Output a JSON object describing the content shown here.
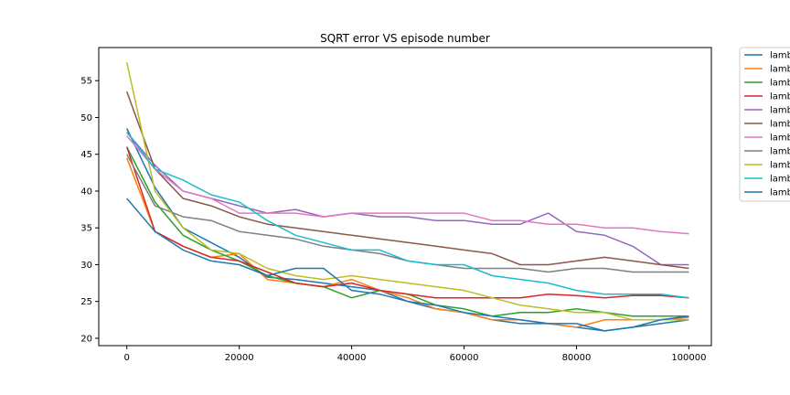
{
  "chart_data": {
    "type": "line",
    "title": "SQRT error VS episode number",
    "xlabel": "",
    "ylabel": "",
    "xlim": [
      -5000,
      104000
    ],
    "ylim": [
      19,
      59.5
    ],
    "xticks": [
      0,
      20000,
      40000,
      60000,
      80000,
      100000
    ],
    "yticks": [
      20,
      25,
      30,
      35,
      40,
      45,
      50,
      55
    ],
    "grid": false,
    "legend_position": "outside-right",
    "x": [
      0,
      5000,
      10000,
      15000,
      20000,
      25000,
      30000,
      35000,
      40000,
      45000,
      50000,
      55000,
      60000,
      65000,
      70000,
      75000,
      80000,
      85000,
      90000,
      95000,
      100000
    ],
    "series": [
      {
        "name": "lamb",
        "color": "#1f77b4",
        "values": [
          48.5,
          40.5,
          35.0,
          33.0,
          31.0,
          28.3,
          28.0,
          27.5,
          27.0,
          26.5,
          25.0,
          24.0,
          23.5,
          22.5,
          22.0,
          22.0,
          21.5,
          21.0,
          21.5,
          22.0,
          22.5
        ]
      },
      {
        "name": "lamb",
        "color": "#ff7f0e",
        "values": [
          44.5,
          34.5,
          32.5,
          31.0,
          31.5,
          28.0,
          27.5,
          27.0,
          28.0,
          26.5,
          25.5,
          24.0,
          23.5,
          22.5,
          22.5,
          22.0,
          21.5,
          22.5,
          22.5,
          22.5,
          22.8
        ]
      },
      {
        "name": "lamb",
        "color": "#2ca02c",
        "values": [
          46.0,
          38.5,
          34.0,
          32.0,
          30.5,
          28.5,
          27.5,
          27.0,
          25.5,
          26.5,
          26.0,
          24.5,
          24.0,
          23.0,
          23.5,
          23.5,
          24.0,
          23.5,
          23.0,
          23.0,
          23.0
        ]
      },
      {
        "name": "lamb",
        "color": "#d62728",
        "values": [
          46.0,
          34.5,
          32.5,
          31.0,
          30.5,
          29.0,
          27.5,
          27.0,
          27.5,
          26.5,
          26.0,
          25.5,
          25.5,
          25.5,
          25.5,
          26.0,
          25.8,
          25.5,
          25.8,
          25.8,
          25.5
        ]
      },
      {
        "name": "lamb",
        "color": "#9467bd",
        "values": [
          48.0,
          43.5,
          40.0,
          39.0,
          38.0,
          37.0,
          37.5,
          36.5,
          37.0,
          36.5,
          36.5,
          36.0,
          36.0,
          35.5,
          35.5,
          37.0,
          34.5,
          34.0,
          32.5,
          30.0,
          30.0
        ]
      },
      {
        "name": "lamb",
        "color": "#8c564b",
        "values": [
          53.5,
          43.0,
          39.0,
          38.0,
          36.5,
          35.5,
          35.0,
          34.5,
          34.0,
          33.5,
          33.0,
          32.5,
          32.0,
          31.5,
          30.0,
          30.0,
          30.5,
          31.0,
          30.5,
          30.0,
          29.5
        ]
      },
      {
        "name": "lamb",
        "color": "#e377c2",
        "values": [
          47.5,
          43.0,
          40.0,
          39.0,
          37.0,
          37.0,
          37.0,
          36.5,
          37.0,
          37.0,
          37.0,
          37.0,
          37.0,
          36.0,
          36.0,
          35.5,
          35.5,
          35.0,
          35.0,
          34.5,
          34.2
        ]
      },
      {
        "name": "lamb",
        "color": "#7f7f7f",
        "values": [
          45.0,
          38.0,
          36.5,
          36.0,
          34.5,
          34.0,
          33.5,
          32.5,
          32.0,
          31.5,
          30.5,
          30.0,
          29.5,
          29.5,
          29.5,
          29.0,
          29.5,
          29.5,
          29.0,
          29.0,
          29.0
        ]
      },
      {
        "name": "lamb",
        "color": "#bcbd22",
        "values": [
          57.5,
          40.0,
          35.0,
          32.0,
          31.5,
          29.5,
          28.5,
          28.0,
          28.5,
          28.0,
          27.5,
          27.0,
          26.5,
          25.5,
          24.5,
          24.0,
          23.5,
          23.5,
          22.5,
          22.5,
          22.5
        ]
      },
      {
        "name": "lamb",
        "color": "#17becf",
        "values": [
          48.0,
          43.0,
          41.5,
          39.5,
          38.5,
          36.0,
          34.0,
          33.0,
          32.0,
          32.0,
          30.5,
          30.0,
          30.0,
          28.5,
          28.0,
          27.5,
          26.5,
          26.0,
          26.0,
          26.0,
          25.5
        ]
      },
      {
        "name": "lamb",
        "color": "#1f77b4",
        "values": [
          39.0,
          34.5,
          32.0,
          30.5,
          30.0,
          28.5,
          29.5,
          29.5,
          26.5,
          26.0,
          25.0,
          24.5,
          23.5,
          23.0,
          22.5,
          22.0,
          22.0,
          21.0,
          21.5,
          22.5,
          23.0
        ]
      }
    ]
  }
}
